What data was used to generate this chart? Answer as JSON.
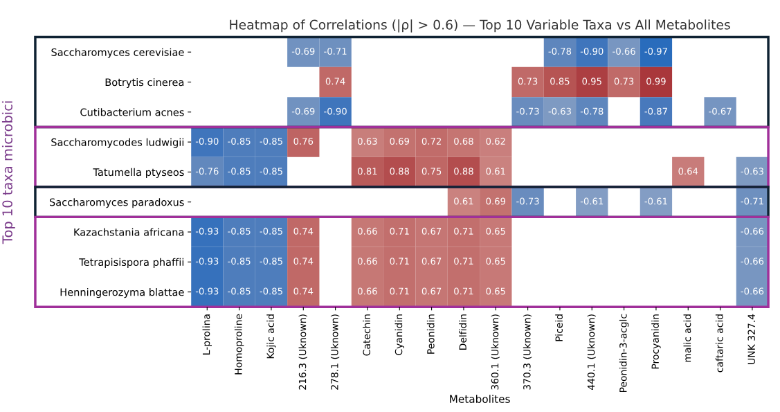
{
  "chart_data": {
    "type": "heatmap",
    "title": "Heatmap of Correlations (|ρ| > 0.6) — Top 10 Variable Taxa vs All Metabolites",
    "xlabel": "Metabolites",
    "ylabel": "Top 10 taxa microbici",
    "categories": [
      "L-prolina",
      "Homoproline",
      "Kojic acid",
      "216.3 (Uknown)",
      "278.1 (Uknown)",
      "Catechin",
      "Cyanidin",
      "Peonidin",
      "Delfidin",
      "360.1 (Uknown)",
      "370.3 (Uknown)",
      "Piceid",
      "440.1 (Uknown)",
      "Peonidin-3-acglc",
      "Procyanidin",
      "malic acid",
      "caftaric acid",
      "UNK 327.4"
    ],
    "y_categories": [
      "Saccharomyces cerevisiae",
      "Botrytis cinerea",
      "Cutibacterium acnes",
      "Saccharomycodes ludwigii",
      "Tatumella ptyseos",
      "Saccharomyces paradoxus",
      "Kazachstania africana",
      "Tetrapisispora phaffii",
      "Henningerozyma blattae"
    ],
    "cells": [
      [
        null,
        null,
        null,
        -0.69,
        -0.71,
        null,
        null,
        null,
        null,
        null,
        null,
        -0.78,
        -0.9,
        -0.66,
        -0.97,
        null,
        null,
        null
      ],
      [
        null,
        null,
        null,
        null,
        0.74,
        null,
        null,
        null,
        null,
        null,
        0.73,
        0.85,
        0.95,
        0.73,
        0.99,
        null,
        null,
        null
      ],
      [
        null,
        null,
        null,
        -0.69,
        -0.9,
        null,
        null,
        null,
        null,
        null,
        -0.73,
        -0.63,
        -0.78,
        null,
        -0.87,
        null,
        -0.67,
        null
      ],
      [
        -0.9,
        -0.85,
        -0.85,
        0.76,
        null,
        0.63,
        0.69,
        0.72,
        0.68,
        0.62,
        null,
        null,
        null,
        null,
        null,
        null,
        null,
        null
      ],
      [
        -0.76,
        -0.85,
        -0.85,
        null,
        null,
        0.81,
        0.88,
        0.75,
        0.88,
        0.61,
        null,
        null,
        null,
        null,
        null,
        0.64,
        null,
        -0.63
      ],
      [
        null,
        null,
        null,
        null,
        null,
        null,
        null,
        null,
        0.61,
        0.69,
        -0.73,
        null,
        -0.61,
        null,
        -0.61,
        null,
        null,
        -0.71
      ],
      [
        -0.93,
        -0.85,
        -0.85,
        0.74,
        null,
        0.66,
        0.71,
        0.67,
        0.71,
        0.65,
        null,
        null,
        null,
        null,
        null,
        null,
        null,
        -0.66
      ],
      [
        -0.93,
        -0.85,
        -0.85,
        0.74,
        null,
        0.66,
        0.71,
        0.67,
        0.71,
        0.65,
        null,
        null,
        null,
        null,
        null,
        null,
        null,
        -0.66
      ],
      [
        -0.93,
        -0.85,
        -0.85,
        0.74,
        null,
        0.66,
        0.71,
        0.67,
        0.71,
        0.65,
        null,
        null,
        null,
        null,
        null,
        null,
        null,
        -0.66
      ]
    ],
    "cell_labels": [
      [
        null,
        null,
        null,
        "-0.69",
        "-0.71",
        null,
        null,
        null,
        null,
        null,
        null,
        "-0.78",
        "-0.90",
        "-0.66",
        "-0.97",
        null,
        null,
        null
      ],
      [
        null,
        null,
        null,
        null,
        "0.74",
        null,
        null,
        null,
        null,
        null,
        "0.73",
        "0.85",
        "0.95",
        "0.73",
        "0.99",
        null,
        null,
        null
      ],
      [
        null,
        null,
        null,
        "-0.69",
        "-0.90",
        null,
        null,
        null,
        null,
        null,
        "-0.73",
        "-0.63",
        "-0.78",
        null,
        "-0.87",
        null,
        "-0.67",
        null
      ],
      [
        "-0.90",
        "-0.85",
        "-0.85",
        "0.76",
        null,
        "0.63",
        "0.69",
        "0.72",
        "0.68",
        "0.62",
        null,
        null,
        null,
        null,
        null,
        null,
        null,
        null
      ],
      [
        "-0.76",
        "-0.85",
        "-0.85",
        null,
        null,
        "0.81",
        "0.88",
        "0.75",
        "0.88",
        "0.61",
        null,
        null,
        null,
        null,
        null,
        "0.64",
        null,
        "-0.63"
      ],
      [
        null,
        null,
        null,
        null,
        null,
        null,
        null,
        null,
        "0.61",
        "0.69",
        "-0.73",
        null,
        "-0.61",
        null,
        "-0.61",
        null,
        null,
        "-0.71"
      ],
      [
        "-0.93",
        "-0.85",
        "-0.85",
        "0.74",
        null,
        "0.66",
        "0.71",
        "0.67",
        "0.71",
        "0.65",
        null,
        null,
        null,
        null,
        null,
        null,
        null,
        "-0.66"
      ],
      [
        "-0.93",
        "-0.85",
        "-0.85",
        "0.74",
        null,
        "0.66",
        "0.71",
        "0.67",
        "0.71",
        "0.65",
        null,
        null,
        null,
        null,
        null,
        null,
        null,
        "-0.66"
      ],
      [
        "-0.93",
        "-0.85",
        "-0.85",
        "0.74",
        null,
        "0.66",
        "0.71",
        "0.67",
        "0.71",
        "0.65",
        null,
        null,
        null,
        null,
        null,
        null,
        null,
        "-0.66"
      ]
    ]
  }
}
